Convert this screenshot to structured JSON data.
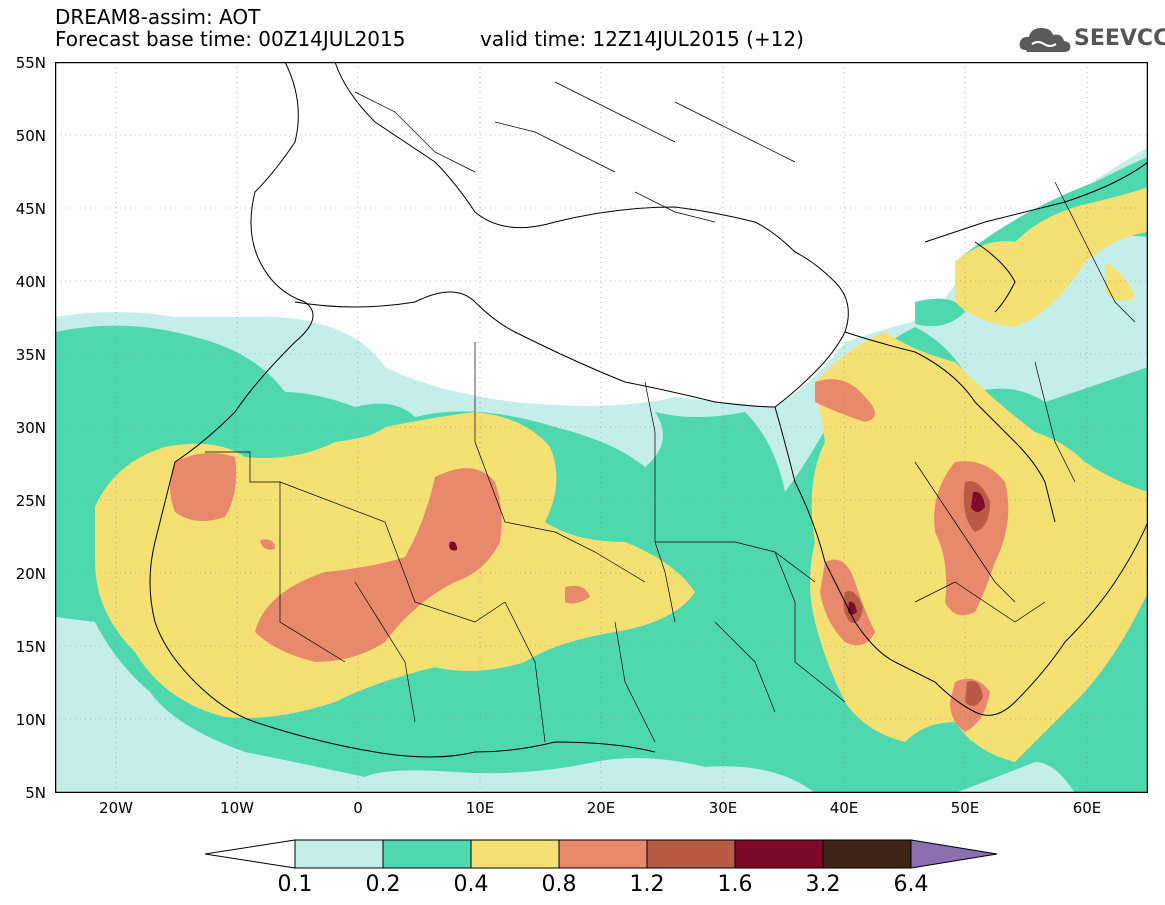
{
  "title": {
    "line1": "DREAM8-assim: AOT",
    "line2": "Forecast base time: 00Z14JUL2015",
    "valid": "valid time: 12Z14JUL2015 (+12)"
  },
  "logo": {
    "text": "SEEVCCC",
    "icon": "cloud-logo-icon"
  },
  "map": {
    "lon_range": [
      -25,
      65
    ],
    "lat_range": [
      5,
      55
    ],
    "y_ticks": [
      "55N",
      "50N",
      "45N",
      "40N",
      "35N",
      "30N",
      "25N",
      "20N",
      "15N",
      "10N",
      "5N"
    ],
    "x_ticks": [
      "20W",
      "10W",
      "0",
      "10E",
      "20E",
      "30E",
      "40E",
      "50E",
      "60E"
    ]
  },
  "legend": {
    "labels": [
      "0.1",
      "0.2",
      "0.4",
      "0.8",
      "1.2",
      "1.6",
      "3.2",
      "6.4"
    ],
    "colors": [
      "#c4efe8",
      "#4fd8b0",
      "#f5e173",
      "#e8896b",
      "#b85a46",
      "#7d0a2a",
      "#3d2415",
      "#8b6fb0"
    ]
  }
}
